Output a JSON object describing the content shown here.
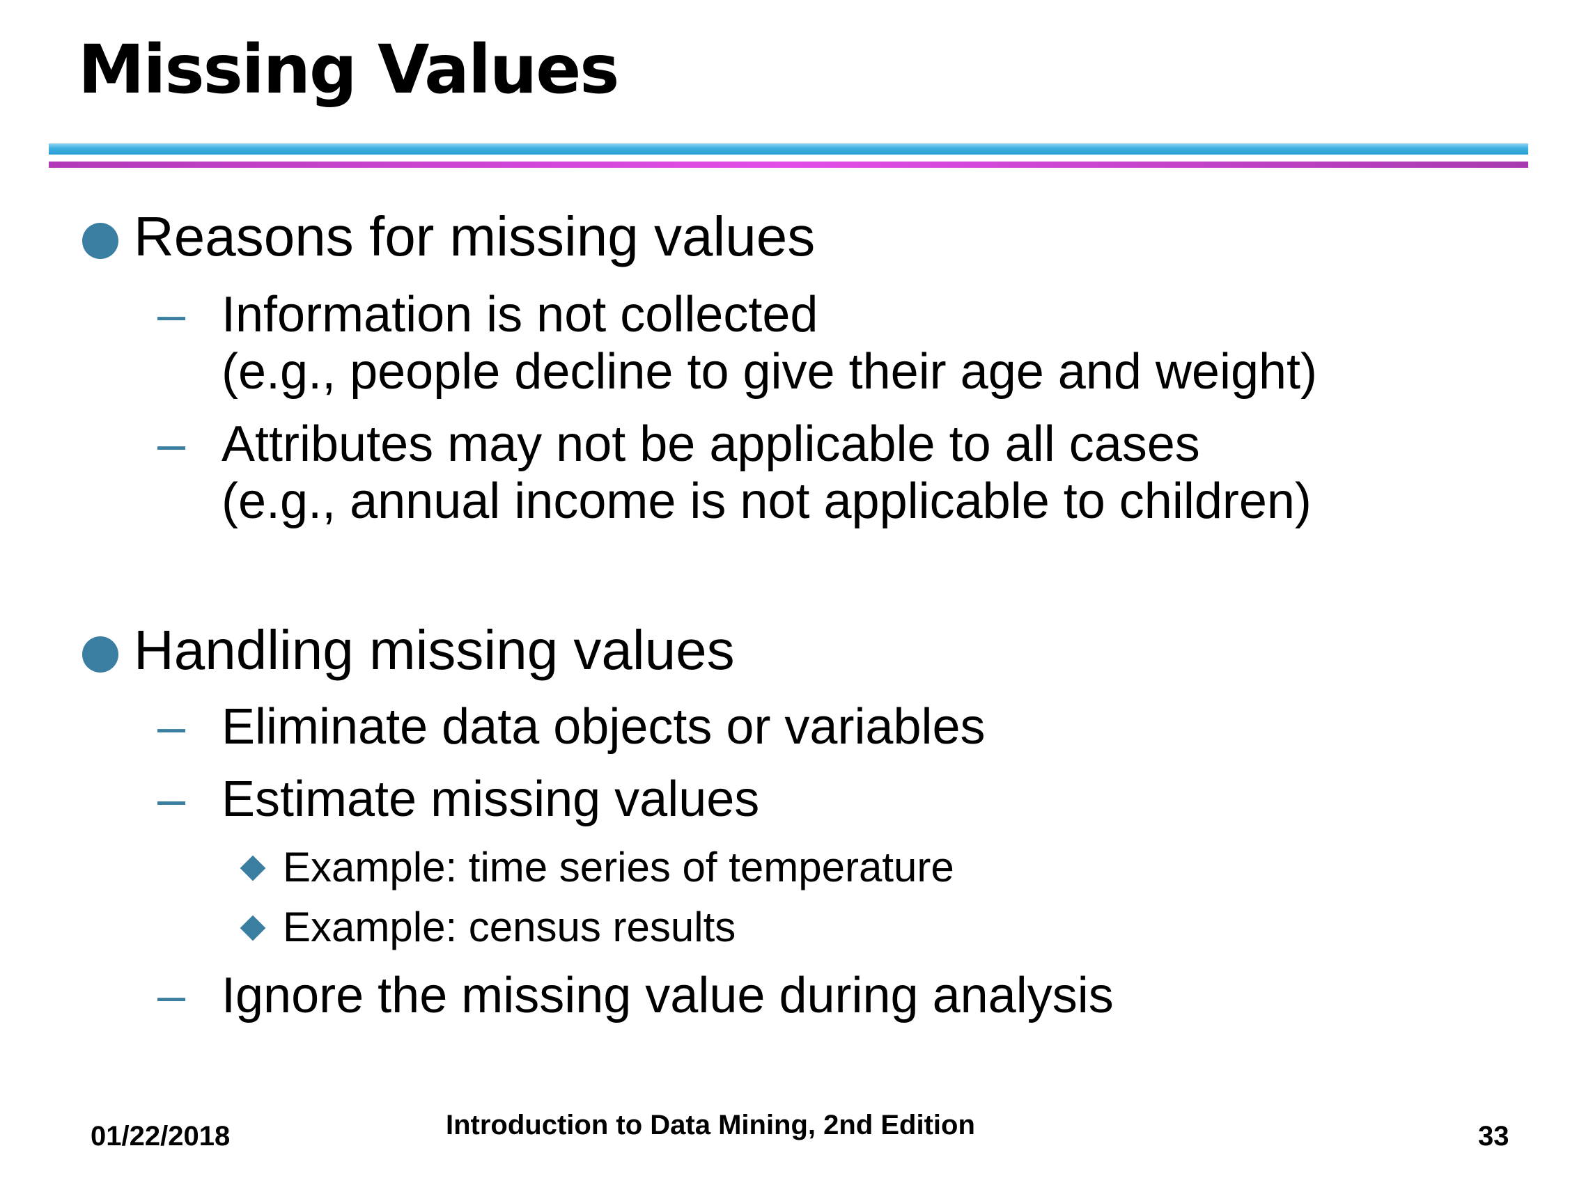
{
  "slide": {
    "title": "Missing Values",
    "sections": [
      {
        "heading": "Reasons for missing values",
        "items": [
          {
            "lines": [
              "Information is not collected",
              "(e.g., people decline to give their age and weight)"
            ]
          },
          {
            "lines": [
              "Attributes may not be applicable to all cases",
              "(e.g., annual income is not applicable to children)"
            ]
          }
        ]
      },
      {
        "heading": "Handling missing values",
        "items": [
          {
            "lines": [
              "Eliminate data objects or variables"
            ]
          },
          {
            "lines": [
              "Estimate missing values"
            ],
            "subitems": [
              "Example: time series of temperature",
              "Example: census results"
            ]
          },
          {
            "lines": [
              "Ignore the missing value during analysis"
            ]
          }
        ]
      }
    ]
  },
  "footer": {
    "date": "01/22/2018",
    "book": "Introduction to Data Mining, 2nd Edition",
    "page": "33"
  },
  "colors": {
    "bullet": "#3a7ea1",
    "rule_blue": "#2a9fd6",
    "rule_magenta": "#e24de8"
  },
  "icons": {
    "level1": "filled-circle-bullet",
    "level2": "en-dash-bullet",
    "level3": "diamond-bullet"
  }
}
